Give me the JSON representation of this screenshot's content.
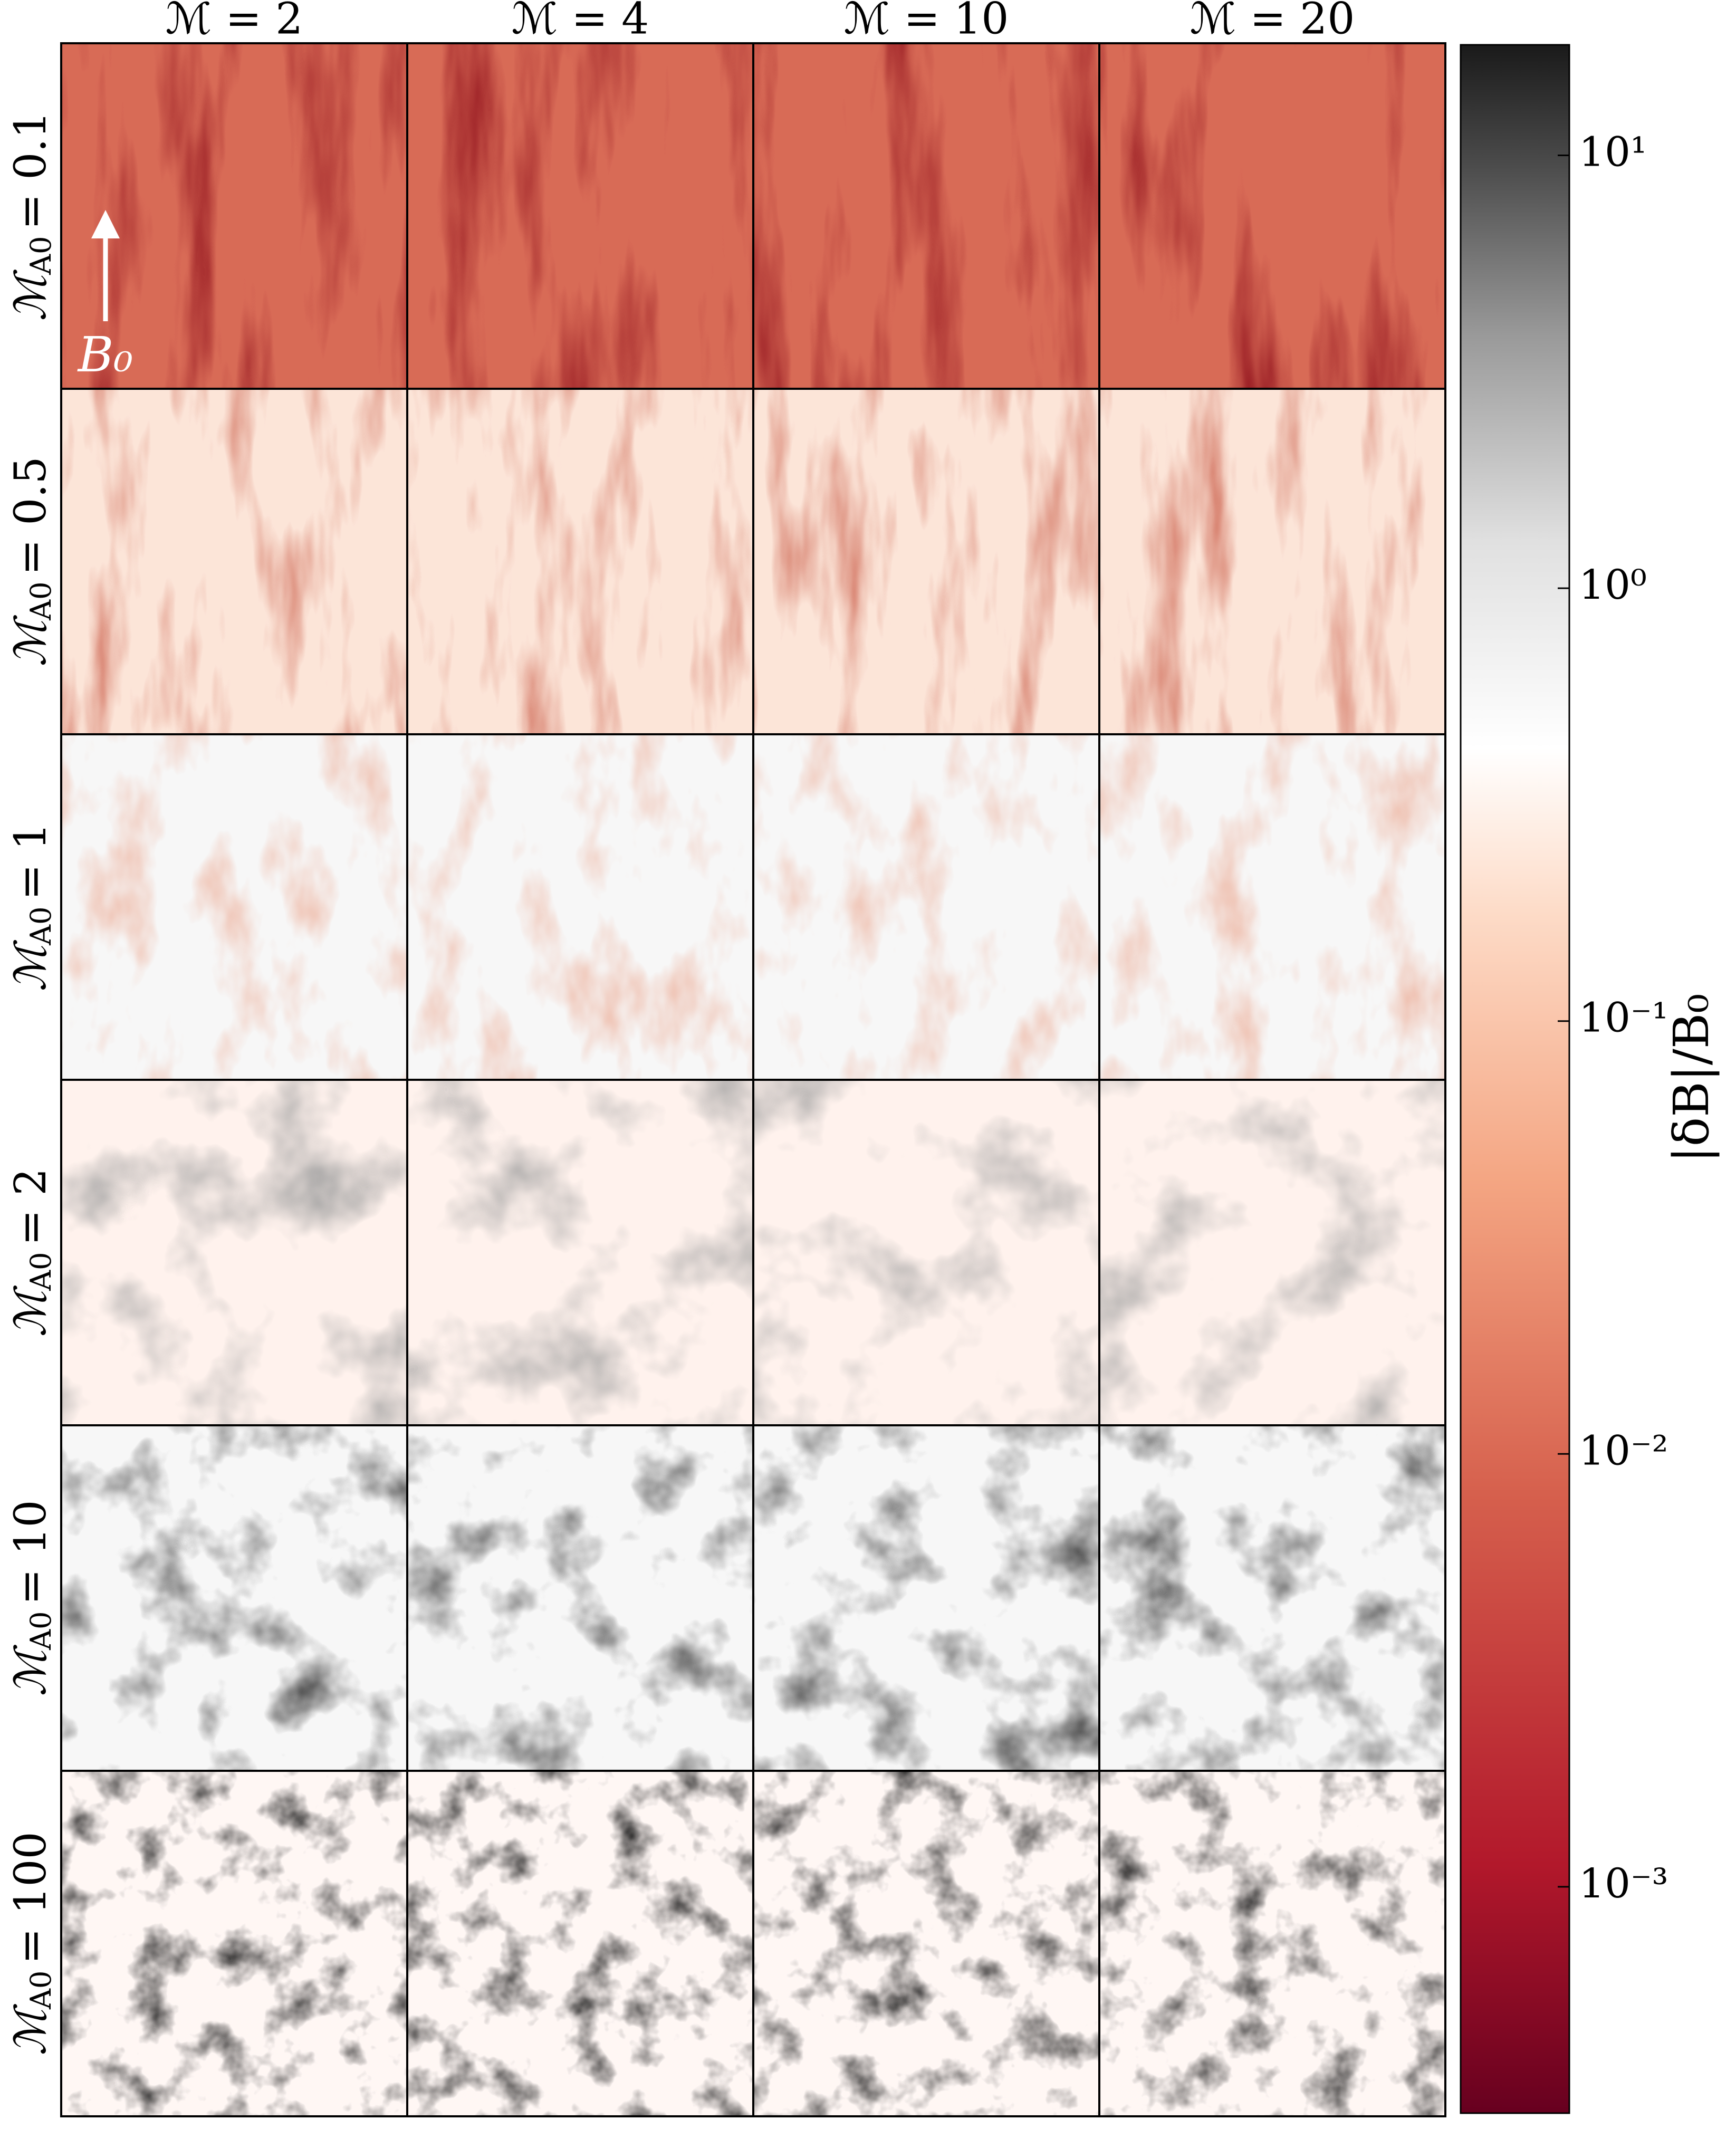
{
  "chart_data": {
    "type": "image-grid",
    "column_labels": [
      "ℳ = 2",
      "ℳ = 4",
      "ℳ = 10",
      "ℳ = 20"
    ],
    "rows": [
      {
        "symbol": "ℳ",
        "subscript": "A0",
        "value": "= 0.1"
      },
      {
        "symbol": "ℳ",
        "subscript": "A0",
        "value": "= 0.5"
      },
      {
        "symbol": "ℳ",
        "subscript": "A0",
        "value": "= 1"
      },
      {
        "symbol": "ℳ",
        "subscript": "A0",
        "value": "= 2"
      },
      {
        "symbol": "ℳ",
        "subscript": "A0",
        "value": "= 10"
      },
      {
        "symbol": "ℳ",
        "subscript": "A0",
        "value": "= 100"
      }
    ],
    "annotation": "B₀",
    "colorbar": {
      "label": "|δB|/B₀",
      "log_scale": true,
      "ylim": [
        0.0003,
        18
      ],
      "yticks": [
        {
          "value": 0.001,
          "label": "10⁻³"
        },
        {
          "value": 0.01,
          "label": "10⁻²"
        },
        {
          "value": 0.1,
          "label": "10⁻¹"
        },
        {
          "value": 1,
          "label": "10⁰"
        },
        {
          "value": 10,
          "label": "10¹"
        }
      ]
    }
  }
}
